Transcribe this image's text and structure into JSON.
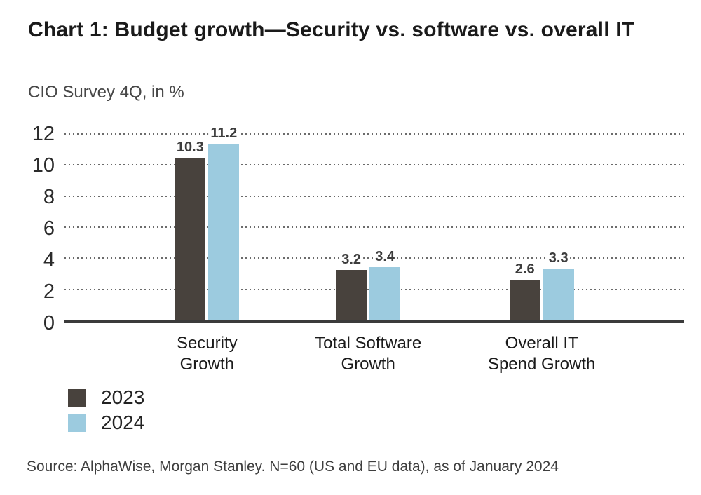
{
  "page": {
    "background": "#ffffff"
  },
  "header": {
    "title": "Chart 1: Budget growth—Security vs. software vs. overall IT",
    "subtitle": "CIO Survey 4Q, in %"
  },
  "chart_data": {
    "type": "bar",
    "categories": [
      "Security\nGrowth",
      "Total Software\nGrowth",
      "Overall IT\nSpend Growth"
    ],
    "series": [
      {
        "name": "2023",
        "values": [
          10.3,
          3.2,
          2.6
        ],
        "color": "#48423d"
      },
      {
        "name": "2024",
        "values": [
          11.2,
          3.4,
          3.3
        ],
        "color": "#9ccbdf"
      }
    ],
    "ylim": [
      0,
      12
    ],
    "yticks": [
      0,
      2,
      4,
      6,
      8,
      10,
      12
    ],
    "grid": "horizontal-dotted",
    "value_labels": true,
    "legend_position": "bottom-left",
    "xlabel": "",
    "ylabel": ""
  },
  "legend": {
    "items": [
      {
        "label": "2023",
        "color": "#48423d"
      },
      {
        "label": "2024",
        "color": "#9ccbdf"
      }
    ]
  },
  "footer": {
    "source": "Source: AlphaWise, Morgan Stanley. N=60 (US and EU data), as of January 2024"
  },
  "colors": {
    "axis": "#3b3b3b",
    "grid_dots": "#6b6b6b",
    "title_text": "#1a1a1a",
    "subtitle_text": "#474747",
    "value_label_text": "#3d3d3d"
  }
}
